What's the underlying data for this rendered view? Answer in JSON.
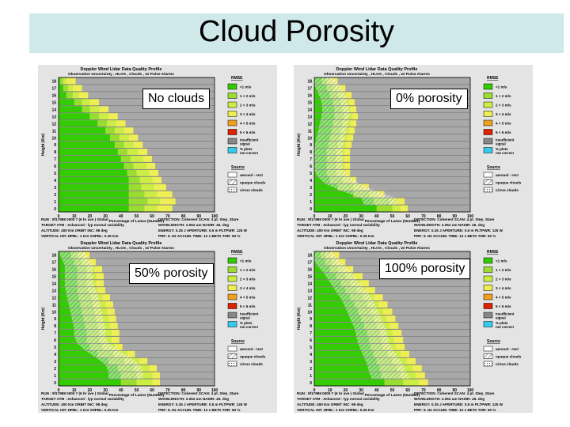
{
  "slide": {
    "title": "Cloud Porosity"
  },
  "panels": [
    {
      "id": "p1",
      "callout": "No clouds"
    },
    {
      "id": "p2",
      "callout": "0% porosity"
    },
    {
      "id": "p3",
      "callout": "50% porosity"
    },
    {
      "id": "p4",
      "callout": "100% porosity"
    }
  ],
  "chart_common": {
    "chart_title": "Doppler Wind Lidar Data Quality Profile",
    "subtitle": "Observation Uncertainty , HLOS , Clouds , w/ Pulse Alarms",
    "ylabel": "Height (Km)",
    "xlabel": "Percentage of Lanes (Number)",
    "y_ticks": [
      "18",
      "17",
      "16",
      "15",
      "14",
      "13",
      "12",
      "11",
      "10",
      "9",
      "8",
      "7",
      "6",
      "5",
      "4",
      "3",
      "2",
      "1",
      "0"
    ],
    "x_ticks": [
      "0",
      "10",
      "20",
      "30",
      "40",
      "50",
      "60",
      "70",
      "80",
      "90",
      "100"
    ],
    "legend_title": "RMSE",
    "legend_items": [
      {
        "label": "<1 m/s",
        "color": "#33cc00"
      },
      {
        "label": "1 < 2 m/s",
        "color": "#99dd33"
      },
      {
        "label": "2 < 3 m/s",
        "color": "#ccee44"
      },
      {
        "label": "3 < 4 m/s",
        "color": "#eeee55"
      },
      {
        "label": "4 < 5 m/s",
        "color": "#f0a020"
      },
      {
        "label": "5 < 6 m/s",
        "color": "#dd2200"
      },
      {
        "label": "insufficient signal",
        "color": "#888888"
      },
      {
        "label": "% plots not correct",
        "color": "#33ccee"
      }
    ],
    "legend2_title": "Source",
    "legend2_items": [
      {
        "label": "aerosol - rect",
        "pattern": "solid"
      },
      {
        "label": "opaque clouds",
        "pattern": "hatch"
      },
      {
        "label": "cirrus clouds",
        "pattern": "dots"
      }
    ],
    "footer_left": [
      "RUN : 9f17989 0000 7 (6 hr ave ) Global",
      "TARGET ATM : enhanced - lyp normal variability",
      "ALTITUDE: 400 Km ORBIT INC: 98 deg",
      "VERTICAL INT. HPBL: 1 Km VHPBL: 0.25 Km"
    ],
    "footer_right": [
      "DETECTION: Coherent SCAN: 4 pt. Step_Stare",
      "WAVELENGTH: 2.052 um NADIR: 45. deg",
      "ENERGY: 0.25 J APERTURE: 0.5 m PLTPWR: 125 W",
      "PRF: 5. Hz ACCUM. TIME: 12 s BETA THR: 50 %"
    ]
  },
  "chart_data": [
    {
      "type": "bar",
      "orientation": "horizontal-stacked",
      "panel": "No clouds",
      "heights_km": [
        0,
        1,
        2,
        3,
        4,
        5,
        6,
        7,
        8,
        9,
        10,
        11,
        12,
        13,
        14,
        15,
        16,
        17,
        18
      ],
      "series": [
        {
          "values": [
            45,
            45,
            45,
            45,
            45,
            44,
            42,
            40,
            38,
            36,
            33,
            30,
            25,
            20,
            15,
            10,
            5,
            3,
            1
          ]
        },
        {
          "values": [
            10,
            12,
            10,
            8,
            7,
            6,
            6,
            6,
            6,
            6,
            6,
            6,
            6,
            6,
            5,
            5,
            4,
            3,
            2
          ]
        },
        {
          "values": [
            8,
            8,
            8,
            8,
            8,
            8,
            8,
            8,
            7,
            6,
            6,
            6,
            6,
            6,
            6,
            5,
            4,
            3,
            2
          ]
        },
        {
          "values": [
            10,
            10,
            10,
            8,
            6,
            6,
            6,
            6,
            6,
            6,
            6,
            6,
            6,
            6,
            6,
            6,
            6,
            6,
            6
          ]
        },
        {
          "values": [
            27,
            25,
            27,
            31,
            34,
            36,
            38,
            40,
            43,
            46,
            49,
            52,
            57,
            62,
            68,
            74,
            81,
            85,
            89
          ]
        }
      ],
      "xlim": [
        0,
        100
      ],
      "ylim": [
        0,
        18
      ]
    },
    {
      "type": "bar",
      "orientation": "horizontal-stacked",
      "panel": "0% porosity",
      "heights_km": [
        0,
        1,
        2,
        3,
        4,
        5,
        6,
        7,
        8,
        9,
        10,
        11,
        12,
        13,
        14,
        15,
        16,
        17,
        18
      ],
      "series": [
        {
          "values": [
            40,
            38,
            25,
            15,
            10,
            8,
            8,
            8,
            8,
            9,
            10,
            11,
            12,
            13,
            13,
            12,
            10,
            8,
            5
          ]
        },
        {
          "values": [
            10,
            10,
            10,
            10,
            8,
            6,
            6,
            6,
            6,
            6,
            6,
            6,
            6,
            6,
            5,
            5,
            5,
            4,
            3
          ]
        },
        {
          "values": [
            5,
            5,
            5,
            5,
            5,
            5,
            5,
            5,
            5,
            5,
            5,
            5,
            5,
            5,
            5,
            5,
            5,
            4,
            3
          ]
        },
        {
          "values": [
            5,
            5,
            5,
            5,
            4,
            4,
            4,
            4,
            4,
            4,
            4,
            4,
            4,
            4,
            4,
            4,
            4,
            4,
            4
          ]
        },
        {
          "values": [
            40,
            42,
            55,
            65,
            73,
            77,
            77,
            77,
            77,
            76,
            75,
            74,
            73,
            72,
            73,
            74,
            76,
            80,
            85
          ]
        }
      ],
      "xlim": [
        0,
        100
      ],
      "ylim": [
        0,
        18
      ]
    },
    {
      "type": "bar",
      "orientation": "horizontal-stacked",
      "panel": "50% porosity",
      "heights_km": [
        0,
        1,
        2,
        3,
        4,
        5,
        6,
        7,
        8,
        9,
        10,
        11,
        12,
        13,
        14,
        15,
        16,
        17,
        18
      ],
      "series": [
        {
          "values": [
            40,
            40,
            38,
            32,
            25,
            20,
            18,
            18,
            17,
            16,
            15,
            14,
            13,
            12,
            12,
            12,
            12,
            10,
            8
          ]
        },
        {
          "values": [
            10,
            10,
            10,
            10,
            10,
            8,
            8,
            8,
            8,
            8,
            8,
            8,
            8,
            7,
            6,
            6,
            6,
            5,
            4
          ]
        },
        {
          "values": [
            10,
            10,
            10,
            10,
            9,
            8,
            8,
            8,
            8,
            8,
            8,
            8,
            7,
            6,
            6,
            6,
            5,
            4,
            3
          ]
        },
        {
          "values": [
            5,
            5,
            5,
            5,
            5,
            5,
            5,
            5,
            5,
            5,
            5,
            5,
            5,
            5,
            5,
            5,
            5,
            5,
            5
          ]
        },
        {
          "values": [
            35,
            35,
            37,
            43,
            51,
            59,
            61,
            61,
            62,
            63,
            64,
            65,
            67,
            70,
            71,
            71,
            72,
            76,
            80
          ]
        }
      ],
      "xlim": [
        0,
        100
      ],
      "ylim": [
        0,
        18
      ]
    },
    {
      "type": "bar",
      "orientation": "horizontal-stacked",
      "panel": "100% porosity",
      "heights_km": [
        0,
        1,
        2,
        3,
        4,
        5,
        6,
        7,
        8,
        9,
        10,
        11,
        12,
        13,
        14,
        15,
        16,
        17,
        18
      ],
      "series": [
        {
          "values": [
            45,
            43,
            42,
            40,
            38,
            36,
            35,
            34,
            32,
            30,
            28,
            26,
            23,
            20,
            17,
            14,
            10,
            7,
            4
          ]
        },
        {
          "values": [
            12,
            12,
            11,
            10,
            9,
            8,
            8,
            8,
            8,
            8,
            8,
            8,
            8,
            7,
            6,
            6,
            5,
            4,
            3
          ]
        },
        {
          "values": [
            10,
            10,
            10,
            9,
            8,
            8,
            8,
            8,
            8,
            8,
            8,
            7,
            7,
            6,
            6,
            5,
            4,
            3,
            3
          ]
        },
        {
          "values": [
            6,
            6,
            6,
            6,
            6,
            6,
            6,
            6,
            6,
            6,
            6,
            6,
            6,
            6,
            6,
            6,
            6,
            6,
            6
          ]
        },
        {
          "values": [
            27,
            29,
            31,
            35,
            39,
            42,
            43,
            44,
            46,
            48,
            50,
            53,
            56,
            61,
            65,
            69,
            75,
            80,
            84
          ]
        }
      ],
      "xlim": [
        0,
        100
      ],
      "ylim": [
        0,
        18
      ]
    }
  ]
}
